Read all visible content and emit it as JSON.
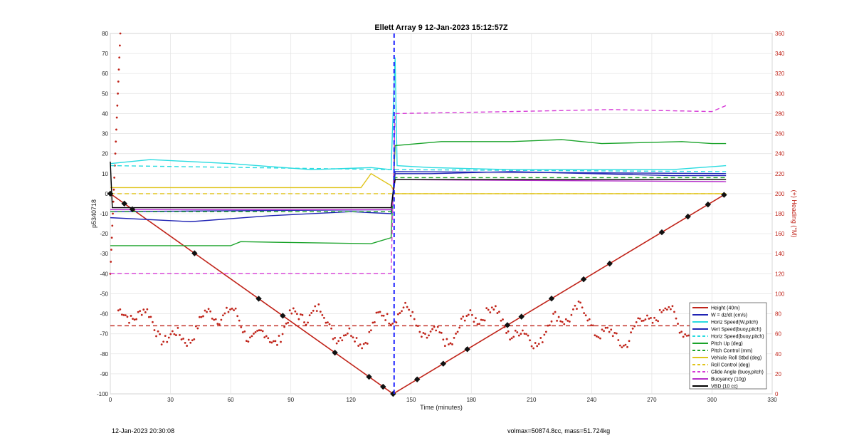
{
  "page": {
    "footer_left": "12-Jan-2023 20:30:08",
    "footer_right": "volmax=50874.8cc, mass=51.724kg"
  },
  "chart_data": {
    "type": "line",
    "title": "Ellett Array 9 12-Jan-2023 15:12:57Z",
    "xlabel": "Time (minutes)",
    "ylabel": "p5340718",
    "y2label": "(+) Heading (°M)",
    "xlim": [
      0,
      330
    ],
    "ylim": [
      -100,
      80
    ],
    "y2lim": [
      0,
      360
    ],
    "xticks": [
      0,
      30,
      60,
      90,
      120,
      150,
      180,
      210,
      240,
      270,
      300,
      330
    ],
    "yticks": [
      -100,
      -90,
      -80,
      -70,
      -60,
      -50,
      -40,
      -30,
      -20,
      -10,
      0,
      10,
      20,
      30,
      40,
      50,
      60,
      70,
      80
    ],
    "y2ticks": [
      0,
      20,
      40,
      60,
      80,
      100,
      120,
      140,
      160,
      180,
      200,
      220,
      240,
      260,
      280,
      300,
      320,
      340,
      360
    ],
    "grid": true,
    "legend_position": "bottom-right",
    "vertical_marker_x": 141.5,
    "heading_mean_deg": 68,
    "series": [
      {
        "name": "Height (40m)",
        "color": "#c0241a",
        "style": "solid",
        "x": [
          0,
          141,
          307
        ],
        "y": [
          0,
          -100,
          0
        ]
      },
      {
        "name": "W = dz/dt (cm/s)",
        "color": "#1f23b4",
        "style": "solid",
        "x": [
          0,
          40,
          80,
          120,
          140,
          142,
          160,
          200,
          240,
          280,
          307
        ],
        "y": [
          -12,
          -14,
          -11,
          -9,
          -10,
          10,
          10,
          11,
          10,
          9,
          9
        ]
      },
      {
        "name": "Horiz Speed(W,pitch)",
        "color": "#29dbe0",
        "style": "solid",
        "x": [
          0,
          20,
          60,
          100,
          130,
          140,
          142,
          143,
          160,
          200,
          240,
          280,
          307
        ],
        "y": [
          15,
          17,
          15,
          12,
          13,
          12,
          68,
          14,
          13,
          12,
          12,
          12,
          14
        ]
      },
      {
        "name": "Vert Speed(buoy,pitch)",
        "color": "#1f23b4",
        "style": "solid",
        "x": [
          0,
          140,
          142,
          307
        ],
        "y": [
          -9,
          -8,
          11,
          10
        ]
      },
      {
        "name": "Horiz Speed(buoy,pitch)",
        "color": "#29dbe0",
        "style": "dashed",
        "x": [
          0,
          140,
          142,
          307
        ],
        "y": [
          14,
          12,
          12,
          11
        ]
      },
      {
        "name": "Pitch Up (deg)",
        "color": "#1aa32a",
        "style": "solid",
        "x": [
          0,
          60,
          65,
          130,
          140,
          142,
          165,
          200,
          225,
          245,
          285,
          300,
          307
        ],
        "y": [
          -26,
          -26,
          -24,
          -25,
          -22,
          24,
          26,
          26,
          27,
          25,
          26,
          25,
          25
        ]
      },
      {
        "name": "Pitch Control (mm)",
        "color": "#1aa32a",
        "style": "dashed",
        "x": [
          0,
          140,
          142,
          307
        ],
        "y": [
          -9,
          -9,
          8,
          8
        ]
      },
      {
        "name": "Vehicle Roll Stbd (deg)",
        "color": "#e0c41a",
        "style": "solid",
        "x": [
          0,
          125,
          130,
          140,
          142,
          307
        ],
        "y": [
          3,
          3,
          10,
          4,
          0,
          0
        ]
      },
      {
        "name": "Roll Control (deg)",
        "color": "#e0c41a",
        "style": "dashed",
        "x": [
          0,
          140,
          142,
          307
        ],
        "y": [
          0,
          0,
          0,
          0
        ]
      },
      {
        "name": "Glide Angle (buoy,pitch)",
        "color": "#d63ad6",
        "style": "dashed",
        "x": [
          0,
          140,
          142,
          200,
          250,
          300,
          307
        ],
        "y": [
          -40,
          -40,
          40,
          41,
          42,
          41,
          44
        ]
      },
      {
        "name": "Buoyancy (10g)",
        "color": "#b52ec9",
        "style": "solid",
        "x": [
          0,
          140,
          142,
          307
        ],
        "y": [
          -8,
          -8,
          7,
          6
        ]
      },
      {
        "name": "VBD (10 cc)",
        "color": "#000000",
        "style": "solid",
        "x": [
          0,
          1,
          140,
          142,
          307
        ],
        "y": [
          16,
          -7,
          -7,
          7,
          7
        ]
      }
    ]
  }
}
